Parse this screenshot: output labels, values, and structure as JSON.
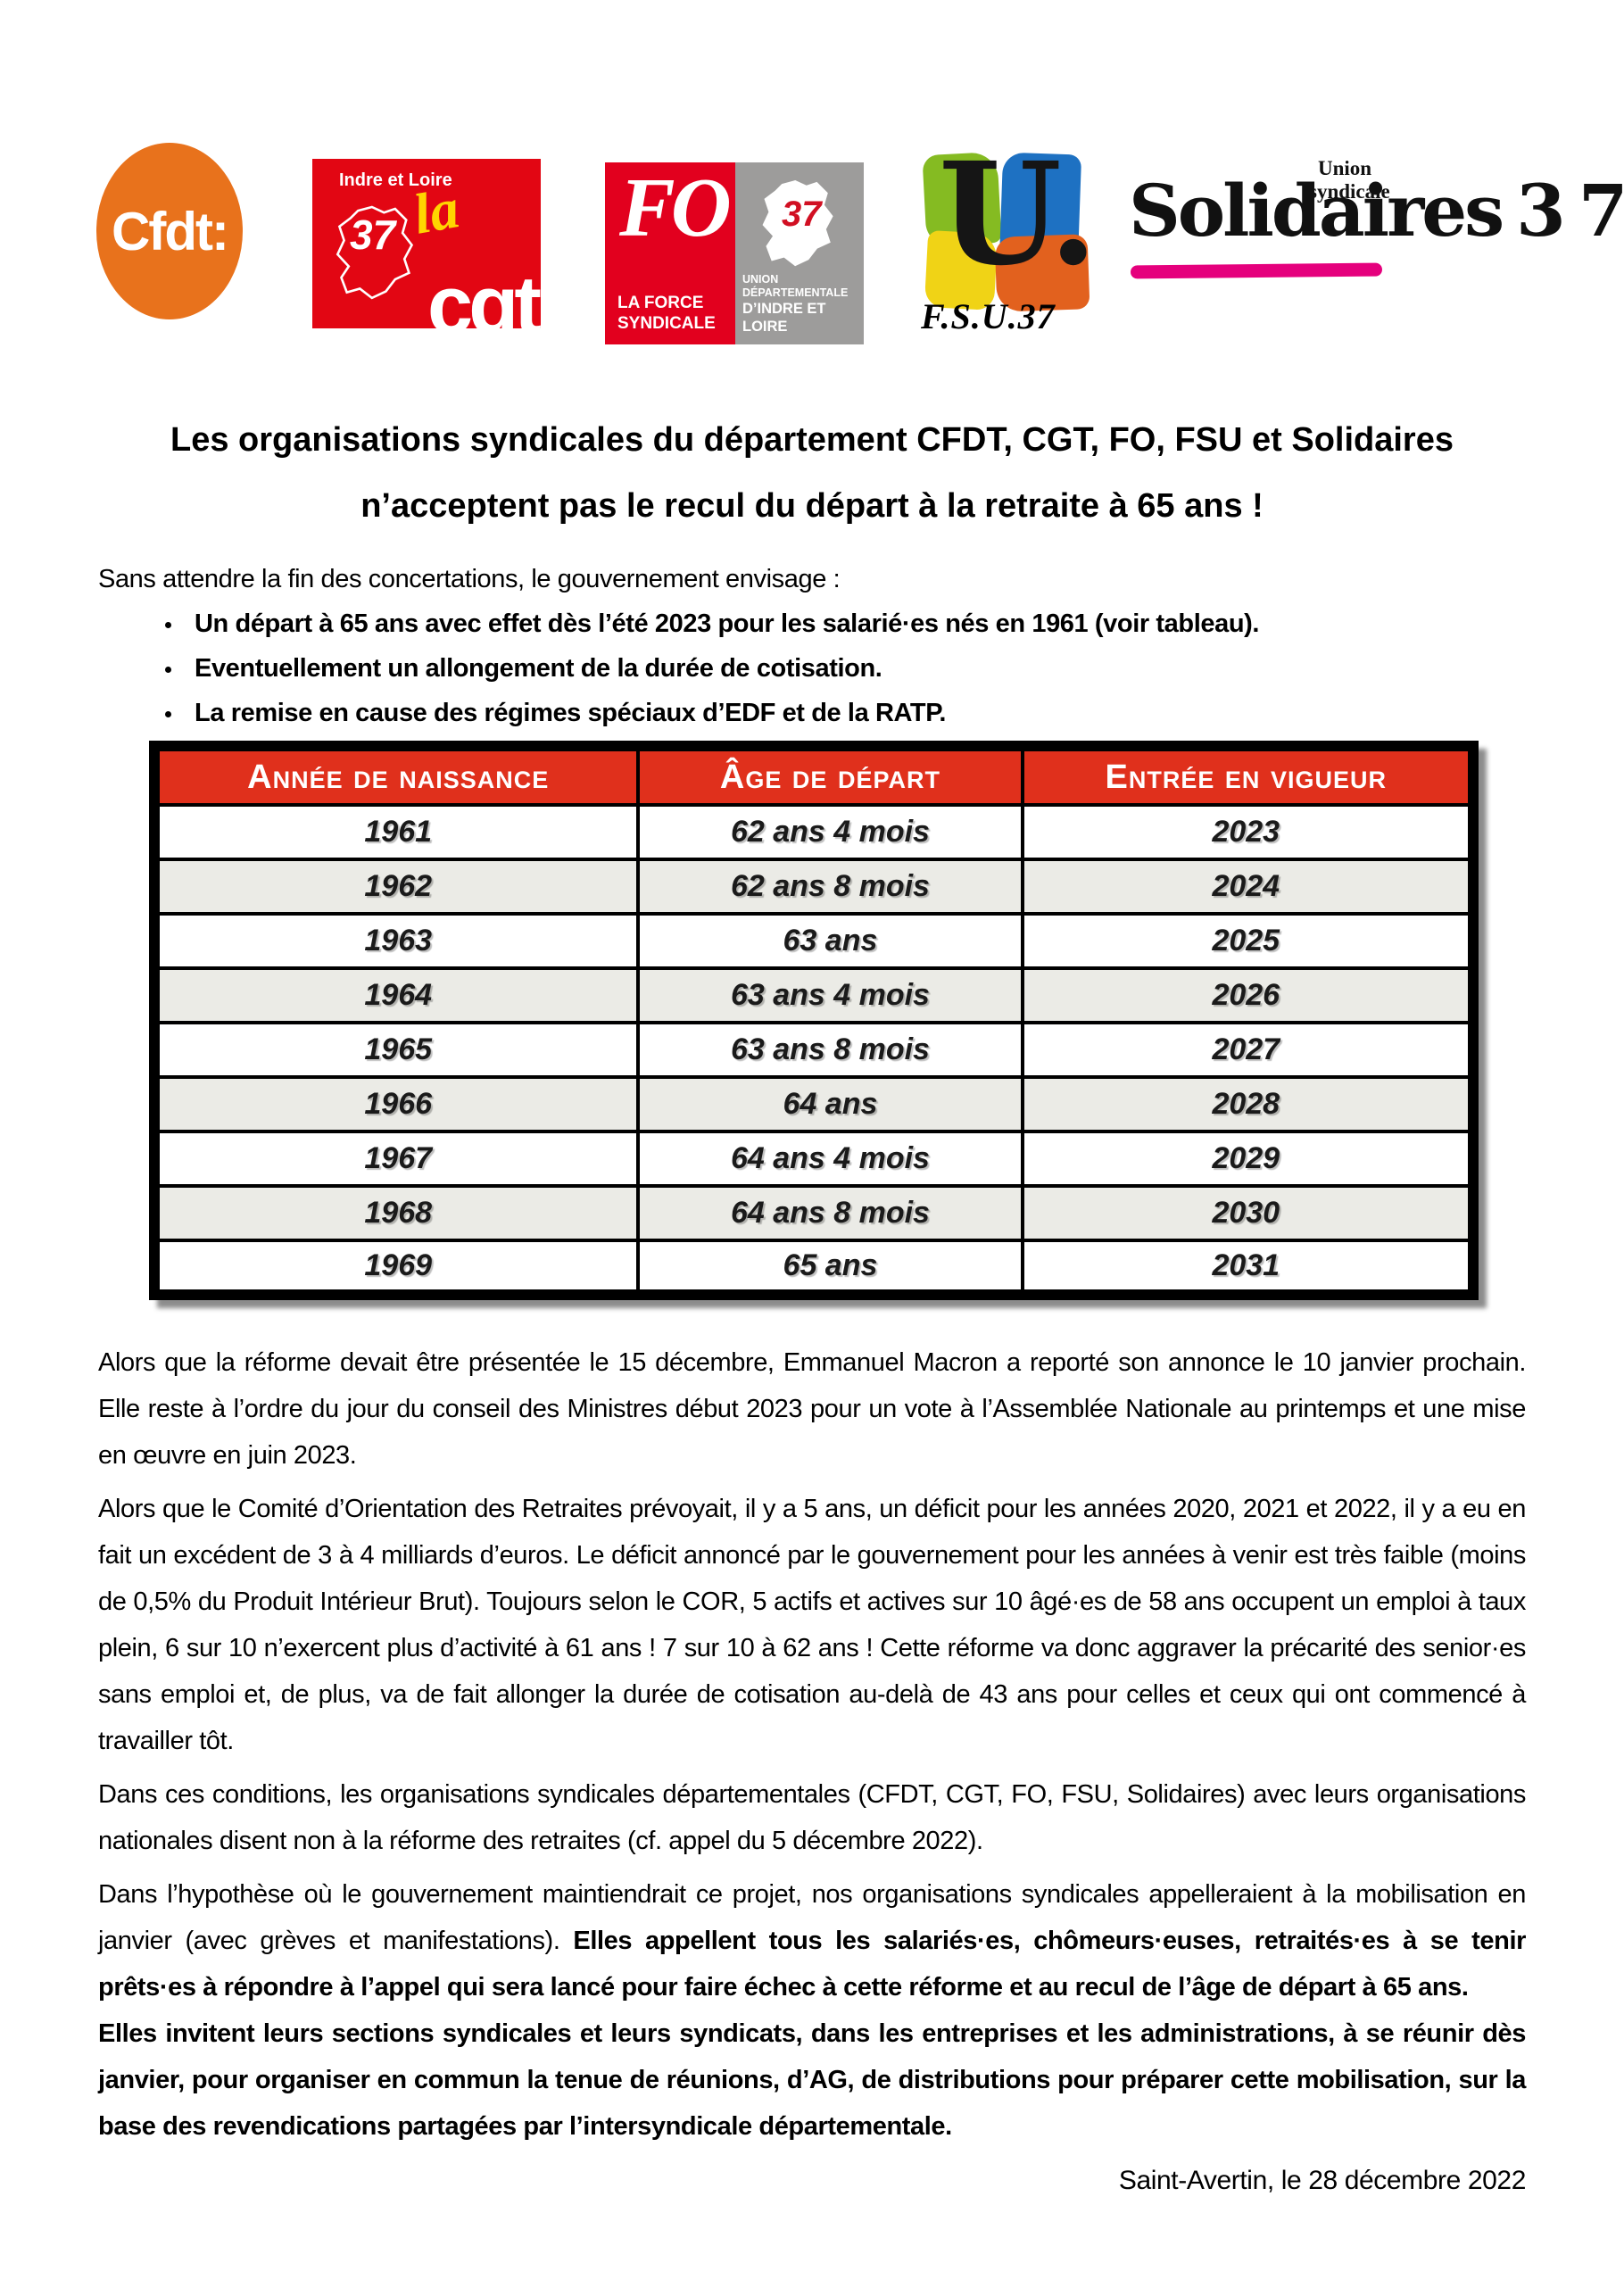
{
  "logos": {
    "cfdt": {
      "name": "Cfdt:"
    },
    "cgt": {
      "region": "Indre et Loire",
      "dept": "37",
      "la": "la",
      "name": "cgt"
    },
    "fo": {
      "name": "FO",
      "tagline_line1": "LA FORCE",
      "tagline_line2": "SYNDICALE",
      "dept": "37",
      "ud_line1": "UNION DÉPARTEMENTALE",
      "ud_line2": "D’INDRE ET LOIRE"
    },
    "fsu": {
      "monogram": "U.",
      "label": "F.S.U.37"
    },
    "solidaires": {
      "union_line1": "Union",
      "union_line2": "syndicale",
      "name": "Solidaires",
      "dept": "37"
    }
  },
  "title": {
    "line1": "Les organisations syndicales du département CFDT, CGT, FO, FSU et Solidaires",
    "line2": "n’acceptent pas le recul du départ à la retraite à 65 ans !"
  },
  "intro": "Sans attendre la fin des concertations, le gouvernement envisage :",
  "bullets": [
    "Un départ à 65 ans avec effet dès l’été 2023 pour les salarié·es nés en 1961 (voir tableau).",
    "Eventuellement un allongement de la durée de cotisation.",
    "La remise en cause des régimes spéciaux d’EDF et de la RATP."
  ],
  "table": {
    "headers": [
      "Année de naissance",
      "Âge de départ",
      "Entrée en vigueur"
    ],
    "rows": [
      [
        "1961",
        "62 ans 4 mois",
        "2023"
      ],
      [
        "1962",
        "62 ans 8 mois",
        "2024"
      ],
      [
        "1963",
        "63 ans",
        "2025"
      ],
      [
        "1964",
        "63 ans 4 mois",
        "2026"
      ],
      [
        "1965",
        "63 ans 8 mois",
        "2027"
      ],
      [
        "1966",
        "64 ans",
        "2028"
      ],
      [
        "1967",
        "64 ans 4 mois",
        "2029"
      ],
      [
        "1968",
        "64 ans 8 mois",
        "2030"
      ],
      [
        "1969",
        "65 ans",
        "2031"
      ]
    ]
  },
  "paragraphs": {
    "p1": "Alors que la réforme devait être présentée le 15 décembre, Emmanuel Macron a reporté son annonce le 10 janvier prochain. Elle reste à l’ordre du jour du conseil des Ministres début 2023 pour un vote à l’Assemblée Nationale au printemps et une mise en œuvre en juin 2023.",
    "p2": "Alors que le Comité d’Orientation des Retraites prévoyait, il y a 5 ans, un déficit pour les années 2020, 2021 et 2022, il y a eu en fait un excédent de 3 à 4 milliards d’euros. Le déficit annoncé par le gouvernement pour les années à venir est très faible (moins de 0,5% du Produit Intérieur Brut). Toujours selon le COR, 5 actifs et actives sur 10 âgé·es de 58 ans occupent un emploi à taux plein, 6 sur 10 n’exercent plus d’activité à 61 ans ! 7 sur 10 à 62 ans ! Cette réforme va donc aggraver la précarité des senior·es sans emploi et, de plus, va de fait allonger la durée de cotisation au-delà de 43 ans pour celles et ceux qui ont commencé à travailler tôt.",
    "p3": "Dans ces conditions, les organisations syndicales départementales (CFDT, CGT, FO, FSU, Solidaires) avec leurs organisations nationales disent non à la réforme des retraites (cf. appel du 5 décembre 2022).",
    "p4_normal": "Dans l’hypothèse où le gouvernement maintiendrait ce projet, nos organisations syndicales appelleraient à la mobilisation en janvier (avec grèves et manifestations). ",
    "p4_bold": "Elles appellent tous les salariés·es, chômeurs·euses, retraités·es à se tenir prêts·es à répondre à l’appel qui sera lancé pour faire échec à cette réforme et au recul de l’âge de départ à 65 ans.",
    "p5": "Elles invitent leurs sections syndicales et leurs syndicats, dans les entreprises et les administrations, à se réunir dès janvier, pour organiser en commun la tenue de réunions, d’AG, de distributions pour préparer cette mobilisation, sur la base des revendications partagées par l’intersyndicale départementale."
  },
  "dateline": "Saint-Avertin, le 28 décembre 2022",
  "colors": {
    "cfdt_orange": "#E8721C",
    "cgt_red": "#E20613",
    "cgt_la_yellow": "#FFD500",
    "fo_red": "#E2001E",
    "fo_gray": "#9D9C9B",
    "fsu_green": "#85BB22",
    "fsu_blue": "#1E71C2",
    "fsu_yellow": "#F0D316",
    "fsu_orange": "#E2611E",
    "solidaires_pink": "#E5007D",
    "table_header_red": "#E0301C",
    "table_row_alt_gray": "#EBEBE6"
  }
}
